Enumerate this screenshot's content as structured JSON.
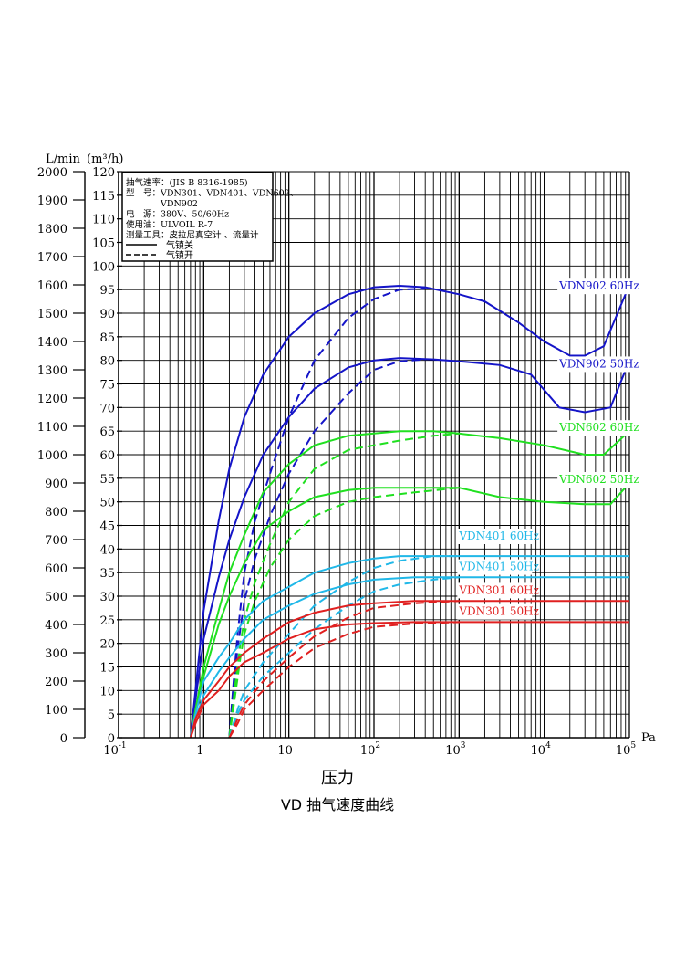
{
  "chart_data": {
    "type": "line",
    "title": "VD 抽气速度曲线",
    "xlabel": "压力",
    "xunit": "Pa",
    "ylabel_left": "L/min",
    "ylabel_right": "(m³/h)",
    "xscale": "log",
    "xlim": [
      0.1,
      100000
    ],
    "ylim_left": [
      0,
      2000
    ],
    "ylim_right": [
      0,
      120
    ],
    "grid": true,
    "x_ticks": [
      {
        "base": "10",
        "exp": "-1",
        "value": 0.1
      },
      {
        "base": "1",
        "exp": "",
        "value": 1
      },
      {
        "base": "10",
        "exp": "",
        "value": 10
      },
      {
        "base": "10",
        "exp": "2",
        "value": 100
      },
      {
        "base": "10",
        "exp": "3",
        "value": 1000
      },
      {
        "base": "10",
        "exp": "4",
        "value": 10000
      },
      {
        "base": "10",
        "exp": "5",
        "value": 100000
      }
    ],
    "y_ticks_left": [
      "0",
      "100",
      "200",
      "300",
      "400",
      "500",
      "600",
      "700",
      "800",
      "900",
      "1000",
      "1100",
      "1200",
      "1300",
      "1400",
      "1500",
      "1600",
      "1700",
      "1800",
      "1900",
      "2000"
    ],
    "y_ticks_right": [
      "0",
      "5",
      "10",
      "15",
      "20",
      "25",
      "30",
      "35",
      "40",
      "45",
      "50",
      "55",
      "60",
      "65",
      "70",
      "75",
      "80",
      "85",
      "90",
      "95",
      "100",
      "105",
      "110",
      "115",
      "120"
    ],
    "legend": {
      "position": "top-left",
      "lines": [
        "抽气速率：(JIS B 8316-1985)",
        "型　号：VDN301、VDN401、VDN602、",
        "　　　　VDN902",
        "电　源：380V、50/60Hz",
        "使用油：ULVOIL R-7",
        "测量工具：皮拉尼真空计 、流量计"
      ],
      "styles": [
        {
          "label": "气镇关",
          "dash": "solid"
        },
        {
          "label": "气镇开",
          "dash": "dashed"
        }
      ]
    },
    "series": [
      {
        "name": "VDN902 60Hz",
        "color": "#1414c8",
        "unit": "m3/h",
        "label_anchor": [
          15000,
          95
        ],
        "solid": [
          [
            0.7,
            0
          ],
          [
            0.8,
            10
          ],
          [
            1,
            27
          ],
          [
            1.5,
            46
          ],
          [
            2,
            57
          ],
          [
            3,
            68
          ],
          [
            5,
            77
          ],
          [
            10,
            85
          ],
          [
            20,
            90
          ],
          [
            50,
            94
          ],
          [
            100,
            95.5
          ],
          [
            200,
            95.8
          ],
          [
            400,
            95.5
          ],
          [
            1000,
            94
          ],
          [
            2000,
            92.5
          ],
          [
            5000,
            88
          ],
          [
            10000,
            84
          ],
          [
            20000,
            81
          ],
          [
            30000,
            81
          ],
          [
            50000,
            83
          ],
          [
            100000,
            96
          ]
        ],
        "dashed": [
          [
            2,
            0
          ],
          [
            2.2,
            10
          ],
          [
            2.5,
            22
          ],
          [
            3,
            35
          ],
          [
            4,
            46
          ],
          [
            6,
            56
          ],
          [
            10,
            68
          ],
          [
            20,
            80
          ],
          [
            50,
            89
          ],
          [
            100,
            93
          ],
          [
            200,
            95
          ],
          [
            400,
            95.2
          ]
        ]
      },
      {
        "name": "VDN902 50Hz",
        "color": "#1414c8",
        "unit": "m3/h",
        "label_anchor": [
          15000,
          78.5
        ],
        "solid": [
          [
            0.7,
            0
          ],
          [
            0.8,
            8
          ],
          [
            1,
            21
          ],
          [
            1.5,
            34
          ],
          [
            2,
            42
          ],
          [
            3,
            51
          ],
          [
            5,
            60
          ],
          [
            10,
            68
          ],
          [
            20,
            74
          ],
          [
            50,
            78.5
          ],
          [
            100,
            80
          ],
          [
            200,
            80.5
          ],
          [
            500,
            80.2
          ],
          [
            1000,
            79.8
          ],
          [
            3000,
            79
          ],
          [
            7000,
            77
          ],
          [
            15000,
            70
          ],
          [
            30000,
            69
          ],
          [
            60000,
            70
          ],
          [
            100000,
            80
          ]
        ],
        "dashed": [
          [
            2,
            0
          ],
          [
            2.2,
            9
          ],
          [
            2.5,
            19
          ],
          [
            3,
            29
          ],
          [
            4,
            38
          ],
          [
            6,
            47
          ],
          [
            10,
            56
          ],
          [
            20,
            65
          ],
          [
            50,
            73
          ],
          [
            100,
            78
          ],
          [
            200,
            79.8
          ],
          [
            400,
            80.2
          ]
        ]
      },
      {
        "name": "VDN602 60Hz",
        "color": "#20e020",
        "unit": "m3/h",
        "label_anchor": [
          15000,
          65
        ],
        "solid": [
          [
            0.7,
            0
          ],
          [
            0.8,
            6
          ],
          [
            1,
            15
          ],
          [
            1.5,
            27
          ],
          [
            2,
            35
          ],
          [
            3,
            43
          ],
          [
            5,
            52
          ],
          [
            10,
            58
          ],
          [
            20,
            62
          ],
          [
            50,
            64
          ],
          [
            100,
            64.5
          ],
          [
            200,
            65
          ],
          [
            500,
            65
          ],
          [
            1000,
            64.5
          ],
          [
            3000,
            63.5
          ],
          [
            10000,
            62
          ],
          [
            30000,
            60
          ],
          [
            50000,
            60
          ],
          [
            100000,
            65
          ]
        ],
        "dashed": [
          [
            2,
            0
          ],
          [
            2.3,
            10
          ],
          [
            2.7,
            20
          ],
          [
            3,
            25
          ],
          [
            4,
            33
          ],
          [
            6,
            41
          ],
          [
            10,
            50
          ],
          [
            20,
            57
          ],
          [
            50,
            61
          ],
          [
            100,
            62
          ],
          [
            200,
            63
          ],
          [
            500,
            64
          ],
          [
            1000,
            64.5
          ]
        ]
      },
      {
        "name": "VDN602 50Hz",
        "color": "#20e020",
        "unit": "m3/h",
        "label_anchor": [
          15000,
          54
        ],
        "solid": [
          [
            0.7,
            0
          ],
          [
            0.8,
            5
          ],
          [
            1,
            13
          ],
          [
            1.5,
            24
          ],
          [
            2,
            30
          ],
          [
            3,
            37
          ],
          [
            5,
            44
          ],
          [
            10,
            48
          ],
          [
            20,
            51
          ],
          [
            50,
            52.5
          ],
          [
            100,
            53
          ],
          [
            300,
            53
          ],
          [
            1000,
            53
          ],
          [
            3000,
            51
          ],
          [
            10000,
            50
          ],
          [
            30000,
            49.5
          ],
          [
            60000,
            49.5
          ],
          [
            100000,
            54
          ]
        ],
        "dashed": [
          [
            2,
            0
          ],
          [
            2.3,
            8
          ],
          [
            2.7,
            17
          ],
          [
            3,
            22
          ],
          [
            4,
            29
          ],
          [
            6,
            36
          ],
          [
            10,
            42
          ],
          [
            20,
            47
          ],
          [
            50,
            50
          ],
          [
            100,
            51
          ],
          [
            300,
            52
          ],
          [
            1000,
            53
          ]
        ]
      },
      {
        "name": "VDN401 60Hz",
        "color": "#20b8e8",
        "unit": "m3/h",
        "label_anchor": [
          1000,
          42
        ],
        "solid": [
          [
            0.7,
            0
          ],
          [
            0.8,
            5
          ],
          [
            1,
            12
          ],
          [
            1.5,
            17
          ],
          [
            2,
            20
          ],
          [
            3,
            25
          ],
          [
            5,
            29
          ],
          [
            10,
            32
          ],
          [
            20,
            35
          ],
          [
            50,
            37
          ],
          [
            100,
            38
          ],
          [
            200,
            38.5
          ],
          [
            500,
            38.5
          ],
          [
            1000,
            38.5
          ],
          [
            100000,
            38.5
          ]
        ],
        "dashed": [
          [
            2,
            0
          ],
          [
            2.5,
            6
          ],
          [
            3,
            10
          ],
          [
            5,
            16
          ],
          [
            10,
            22
          ],
          [
            20,
            28
          ],
          [
            50,
            33
          ],
          [
            100,
            36
          ],
          [
            200,
            37.5
          ],
          [
            500,
            38.5
          ],
          [
            1000,
            38.5
          ]
        ]
      },
      {
        "name": "VDN401 50Hz",
        "color": "#20b8e8",
        "unit": "m3/h",
        "label_anchor": [
          1000,
          35.5
        ],
        "solid": [
          [
            0.7,
            0
          ],
          [
            0.8,
            4
          ],
          [
            1,
            9
          ],
          [
            1.5,
            14
          ],
          [
            2,
            17
          ],
          [
            3,
            21
          ],
          [
            5,
            25
          ],
          [
            10,
            28
          ],
          [
            20,
            30.5
          ],
          [
            50,
            32.5
          ],
          [
            100,
            33.5
          ],
          [
            300,
            34
          ],
          [
            1000,
            34
          ],
          [
            100000,
            34
          ]
        ],
        "dashed": [
          [
            2,
            0
          ],
          [
            2.5,
            5
          ],
          [
            3,
            8
          ],
          [
            5,
            13
          ],
          [
            10,
            18
          ],
          [
            20,
            23
          ],
          [
            50,
            28
          ],
          [
            100,
            31
          ],
          [
            200,
            32.5
          ],
          [
            500,
            33.5
          ],
          [
            1000,
            34
          ]
        ]
      },
      {
        "name": "VDN301 60Hz",
        "color": "#e02020",
        "unit": "m3/h",
        "label_anchor": [
          1000,
          30.5
        ],
        "solid": [
          [
            0.7,
            0
          ],
          [
            0.8,
            4
          ],
          [
            1,
            8
          ],
          [
            1.5,
            12
          ],
          [
            2,
            15
          ],
          [
            3,
            18
          ],
          [
            5,
            21
          ],
          [
            10,
            24.5
          ],
          [
            20,
            26.5
          ],
          [
            50,
            28
          ],
          [
            100,
            28.5
          ],
          [
            300,
            29
          ],
          [
            1000,
            29
          ],
          [
            100000,
            29
          ]
        ],
        "dashed": [
          [
            2,
            0
          ],
          [
            2.5,
            4
          ],
          [
            3,
            7
          ],
          [
            5,
            12
          ],
          [
            10,
            17
          ],
          [
            20,
            21.5
          ],
          [
            50,
            25.5
          ],
          [
            100,
            27.5
          ],
          [
            300,
            28.5
          ],
          [
            1000,
            29
          ]
        ]
      },
      {
        "name": "VDN301 50Hz",
        "color": "#e02020",
        "unit": "m3/h",
        "label_anchor": [
          1000,
          26
        ],
        "solid": [
          [
            0.7,
            0
          ],
          [
            0.8,
            3
          ],
          [
            1,
            7
          ],
          [
            1.5,
            10
          ],
          [
            2,
            13
          ],
          [
            3,
            16
          ],
          [
            5,
            18
          ],
          [
            10,
            21
          ],
          [
            20,
            23
          ],
          [
            50,
            24
          ],
          [
            100,
            24.3
          ],
          [
            300,
            24.5
          ],
          [
            1000,
            24.5
          ],
          [
            100000,
            24.5
          ]
        ],
        "dashed": [
          [
            2,
            0
          ],
          [
            2.5,
            3
          ],
          [
            3,
            6
          ],
          [
            5,
            10
          ],
          [
            10,
            15
          ],
          [
            20,
            19
          ],
          [
            50,
            22
          ],
          [
            100,
            23.5
          ],
          [
            300,
            24.2
          ],
          [
            1000,
            24.5
          ]
        ]
      }
    ]
  },
  "page": {
    "xtitle": "压力",
    "title": "VD 抽气速度曲线"
  }
}
